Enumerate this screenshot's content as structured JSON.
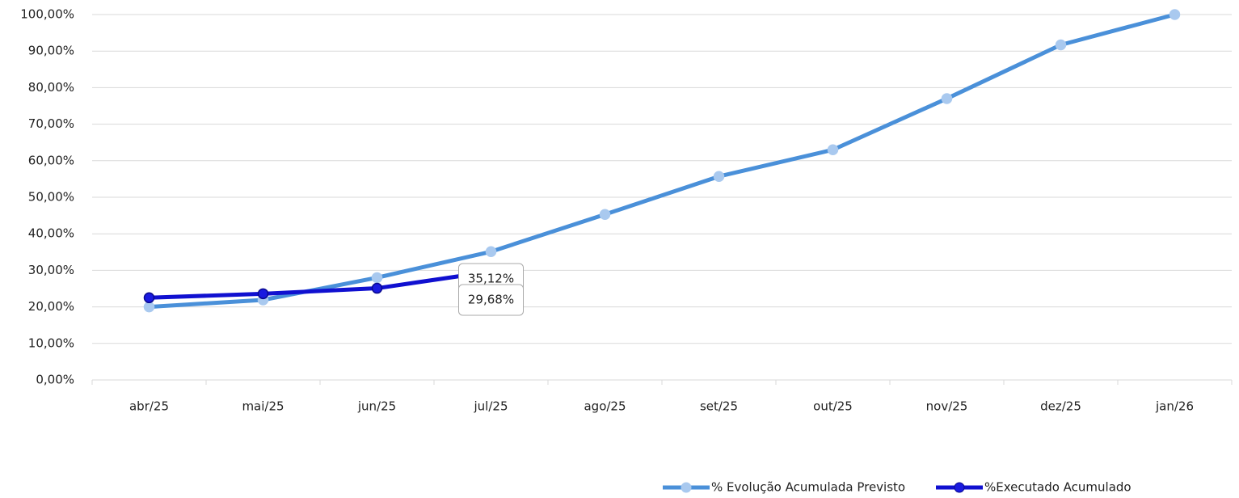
{
  "chart_data": {
    "type": "line",
    "categories": [
      "abr/25",
      "mai/25",
      "jun/25",
      "jul/25",
      "ago/25",
      "set/25",
      "out/25",
      "nov/25",
      "dez/25",
      "jan/26"
    ],
    "series": [
      {
        "name": "% Evolução Acumulada Previsto",
        "color": "#4a90d9",
        "marker_color": "#a9c9ef",
        "values": [
          20.0,
          21.9,
          28.0,
          35.12,
          45.3,
          55.7,
          63.0,
          77.0,
          91.7,
          100.0
        ],
        "value_labels": [
          null,
          null,
          null,
          "35,12%",
          null,
          null,
          null,
          null,
          null,
          null
        ]
      },
      {
        "name": "%Executado Acumulado",
        "color": "#1010d0",
        "marker_color": "#1a1ae0",
        "values": [
          22.5,
          23.6,
          25.1,
          29.68,
          null,
          null,
          null,
          null,
          null,
          null
        ],
        "value_labels": [
          null,
          null,
          null,
          "29,68%",
          null,
          null,
          null,
          null,
          null,
          null
        ]
      }
    ],
    "ylim": [
      0,
      100
    ],
    "yticks": [
      {
        "value": 0,
        "label": "0,00%"
      },
      {
        "value": 10,
        "label": "10,00%"
      },
      {
        "value": 20,
        "label": "20,00%"
      },
      {
        "value": 30,
        "label": "30,00%"
      },
      {
        "value": 40,
        "label": "40,00%"
      },
      {
        "value": 50,
        "label": "50,00%"
      },
      {
        "value": 60,
        "label": "60,00%"
      },
      {
        "value": 70,
        "label": "70,00%"
      },
      {
        "value": 80,
        "label": "80,00%"
      },
      {
        "value": 90,
        "label": "90,00%"
      },
      {
        "value": 100,
        "label": "100,00%"
      }
    ],
    "grid": true,
    "legend": "bottom-right"
  }
}
